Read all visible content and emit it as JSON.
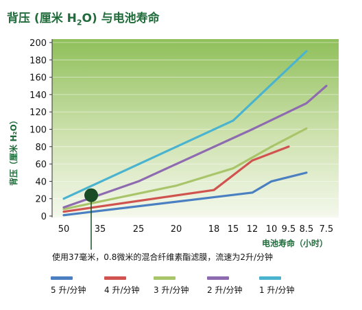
{
  "chart_data": {
    "type": "line",
    "title": "背压（厘米 H₂O）与电池寿命",
    "ylabel": "背压（厘米 H₂O）",
    "xlabel": "电池寿命（小时）",
    "x_categories": [
      "50",
      "35",
      "25",
      "20",
      "18",
      "15",
      "12",
      "10",
      "9.5",
      "8.5",
      "7.5"
    ],
    "y_ticks": [
      0,
      20,
      40,
      60,
      80,
      100,
      120,
      140,
      160,
      180,
      200
    ],
    "ylim": [
      0,
      200
    ],
    "grid": true,
    "background": "green-gradient",
    "series": [
      {
        "name": "5 升/分钟",
        "color": "#4a7fc1",
        "points": [
          {
            "x": "50",
            "y": 1
          },
          {
            "x": "12",
            "y": 27
          },
          {
            "x": "10",
            "y": 40
          },
          {
            "x": "8.5",
            "y": 50
          }
        ]
      },
      {
        "name": "4 升/分钟",
        "color": "#d0534f",
        "points": [
          {
            "x": "50",
            "y": 5
          },
          {
            "x": "18",
            "y": 30
          },
          {
            "x": "12",
            "y": 64
          },
          {
            "x": "9.5",
            "y": 80
          }
        ]
      },
      {
        "name": "3 升/分钟",
        "color": "#a9c56a",
        "points": [
          {
            "x": "50",
            "y": 8
          },
          {
            "x": "20",
            "y": 35
          },
          {
            "x": "15",
            "y": 55
          },
          {
            "x": "10",
            "y": 80
          },
          {
            "x": "8.5",
            "y": 101
          }
        ]
      },
      {
        "name": "2 升/分钟",
        "color": "#8e6bb0",
        "points": [
          {
            "x": "50",
            "y": 10
          },
          {
            "x": "25",
            "y": 40
          },
          {
            "x": "12",
            "y": 100
          },
          {
            "x": "8.5",
            "y": 130
          },
          {
            "x": "7.5",
            "y": 150
          }
        ]
      },
      {
        "name": "1 升/分钟",
        "color": "#4ab3cf",
        "points": [
          {
            "x": "50",
            "y": 20
          },
          {
            "x": "15",
            "y": 110
          },
          {
            "x": "8.5",
            "y": 190
          }
        ]
      }
    ],
    "marker": {
      "x": "35",
      "y": 24,
      "color": "#1a4d26"
    },
    "footnote": "使用37毫米，0.8微米的混合纤维素酯滤膜，流速为2升/分钟"
  }
}
